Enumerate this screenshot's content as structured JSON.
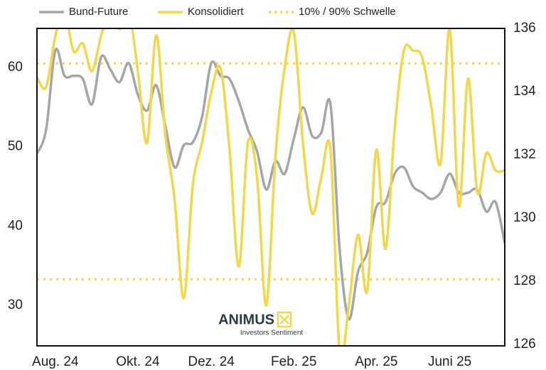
{
  "chart_data": {
    "type": "line",
    "categories": [
      null,
      null,
      "Aug. 24",
      null,
      null,
      null,
      null,
      null,
      null,
      null,
      null,
      "Okt. 24",
      null,
      null,
      null,
      null,
      null,
      null,
      null,
      "Dez. 24",
      null,
      null,
      null,
      null,
      null,
      null,
      null,
      null,
      "Feb. 25",
      null,
      null,
      null,
      null,
      null,
      null,
      null,
      null,
      "Apr. 25",
      null,
      null,
      null,
      null,
      null,
      null,
      null,
      "Juni 25",
      null,
      null,
      null,
      null,
      null,
      null
    ],
    "series": [
      {
        "name": "Bund-Future",
        "color": "#a6a6a6",
        "axis": "y2",
        "values": [
          132.03,
          132.8,
          135.3,
          134.5,
          134.5,
          134.4,
          133.6,
          135.1,
          134.7,
          134.3,
          134.9,
          133.9,
          133.4,
          134.2,
          132.9,
          131.6,
          132.3,
          132.4,
          133.2,
          134.9,
          134.5,
          134.4,
          133.7,
          132.8,
          132.1,
          130.9,
          131.8,
          131.4,
          132.5,
          133.5,
          132.6,
          132.7,
          133.6,
          129,
          126.8,
          128.3,
          128.9,
          130.35,
          130.5,
          131.4,
          131.6,
          131.0,
          130.8,
          130.6,
          130.8,
          131.4,
          130.8,
          130.8,
          130.9,
          130.2,
          130.5,
          129.2
        ]
      },
      {
        "name": "Konsolidiert",
        "color": "#f2d64b",
        "axis": "y",
        "values": [
          58.75,
          57.5,
          63.9,
          67,
          62,
          63,
          59.5,
          64,
          67,
          64.8,
          67,
          59.5,
          50.5,
          64,
          51.4,
          43.4,
          30.9,
          45.2,
          50.5,
          56.8,
          59.9,
          49.6,
          34.9,
          50.5,
          46.1,
          30,
          48.75,
          59.9,
          64.4,
          50.5,
          41.6,
          46.1,
          49.6,
          24,
          30,
          38.9,
          31.8,
          49.6,
          37.1,
          52.3,
          62.1,
          62.1,
          61.25,
          55,
          47.9,
          64.8,
          42.5,
          58.6,
          44.3,
          49.2,
          47,
          47
        ]
      }
    ],
    "threshold_lines": {
      "name": "10% / 90% Schwelle",
      "color": "#f2d64b",
      "values": [
        33.3,
        60.5
      ]
    },
    "ylim": [
      24.9,
      64.9
    ],
    "yticks": [
      30,
      40,
      50,
      60
    ],
    "y2lim": [
      125.95,
      136
    ],
    "y2ticks": [
      126,
      128,
      130,
      132,
      134,
      136
    ],
    "logo": {
      "text": "ANIMUS",
      "subtitle": "Investors Sentiment"
    }
  }
}
